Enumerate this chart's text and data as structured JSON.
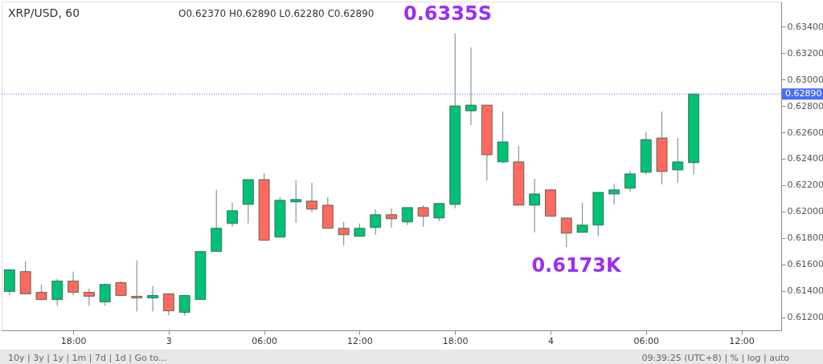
{
  "chart_data": {
    "type": "candlestick",
    "title": "XRP/USD, 60",
    "subtitle": "O0.62370 H0.62890 L0.62280 C0.62890",
    "categories": [
      null,
      null,
      null,
      null,
      "18:00",
      null,
      null,
      null,
      null,
      null,
      "3",
      null,
      null,
      null,
      null,
      null,
      "06:00",
      null,
      null,
      null,
      null,
      null,
      "12:00",
      null,
      null,
      null,
      null,
      null,
      "18:00",
      null,
      null,
      null,
      null,
      null,
      "4",
      null,
      null,
      null,
      null,
      null,
      "06:00",
      null,
      null,
      null,
      null,
      null,
      "12:00",
      null,
      null
    ],
    "ohlc": [
      [
        0.61394,
        0.61564,
        0.61364,
        0.61558
      ],
      [
        0.61545,
        0.61624,
        0.61376,
        0.61376
      ],
      [
        0.61388,
        0.61448,
        0.61327,
        0.61333
      ],
      [
        0.61333,
        0.61491,
        0.61285,
        0.61473
      ],
      [
        0.61473,
        0.61545,
        0.61364,
        0.61388
      ],
      [
        0.61388,
        0.61418,
        0.61285,
        0.61358
      ],
      [
        0.61315,
        0.61455,
        0.61285,
        0.61448
      ],
      [
        0.61461,
        0.61473,
        0.61364,
        0.61364
      ],
      [
        0.61358,
        0.6163,
        0.61242,
        0.61345
      ],
      [
        0.61345,
        0.61436,
        0.61242,
        0.61364
      ],
      [
        0.61376,
        0.61376,
        0.61212,
        0.61248
      ],
      [
        0.61236,
        0.61364,
        0.61212,
        0.61364
      ],
      [
        0.61333,
        0.61697,
        0.61333,
        0.61697
      ],
      [
        0.61697,
        0.62164,
        0.61697,
        0.61873
      ],
      [
        0.61909,
        0.62067,
        0.61885,
        0.62006
      ],
      [
        0.62054,
        0.62242,
        0.61909,
        0.62242
      ],
      [
        0.62242,
        0.62291,
        0.61782,
        0.61782
      ],
      [
        0.61806,
        0.62109,
        0.61806,
        0.62085
      ],
      [
        0.62073,
        0.62236,
        0.61915,
        0.62091
      ],
      [
        0.62079,
        0.62218,
        0.61994,
        0.62018
      ],
      [
        0.62048,
        0.62109,
        0.61873,
        0.61873
      ],
      [
        0.61873,
        0.61921,
        0.6174,
        0.61824
      ],
      [
        0.61812,
        0.61909,
        0.61812,
        0.61873
      ],
      [
        0.61879,
        0.62018,
        0.61824,
        0.61976
      ],
      [
        0.61976,
        0.62024,
        0.61879,
        0.61945
      ],
      [
        0.61921,
        0.6203,
        0.61897,
        0.6203
      ],
      [
        0.6203,
        0.62048,
        0.61885,
        0.61964
      ],
      [
        0.61951,
        0.62061,
        0.61927,
        0.62061
      ],
      [
        0.62054,
        0.6335,
        0.62024,
        0.628
      ],
      [
        0.62763,
        0.63242,
        0.62654,
        0.62806
      ],
      [
        0.62806,
        0.62806,
        0.62236,
        0.6243
      ],
      [
        0.62376,
        0.62757,
        0.62364,
        0.62527
      ],
      [
        0.62376,
        0.62497,
        0.62048,
        0.62048
      ],
      [
        0.62048,
        0.62248,
        0.61842,
        0.62133
      ],
      [
        0.62164,
        0.62164,
        0.61964,
        0.61964
      ],
      [
        0.61951,
        0.61951,
        0.6173,
        0.61836
      ],
      [
        0.61842,
        0.62067,
        0.61842,
        0.61897
      ],
      [
        0.61897,
        0.62145,
        0.61812,
        0.62145
      ],
      [
        0.62133,
        0.62206,
        0.62054,
        0.62164
      ],
      [
        0.62176,
        0.62309,
        0.62151,
        0.62285
      ],
      [
        0.62297,
        0.626,
        0.62279,
        0.62545
      ],
      [
        0.62557,
        0.62757,
        0.62206,
        0.62303
      ],
      [
        0.62315,
        0.62557,
        0.62218,
        0.62376
      ],
      [
        0.6237,
        0.6289,
        0.6228,
        0.6289
      ],
      null,
      null,
      null,
      null,
      null
    ],
    "colors": [
      "#00c176",
      "#ff6960",
      "#ff6960",
      "#00c176",
      "#ff6960",
      "#ff6960",
      "#00c176",
      "#ff6960",
      "#ff6960",
      "#00c176",
      "#ff6960",
      "#00c176",
      "#00c176",
      "#00c176",
      "#00c176",
      "#00c176",
      "#ff6960",
      "#00c176",
      "#00c176",
      "#ff6960",
      "#ff6960",
      "#ff6960",
      "#00c176",
      "#00c176",
      "#ff6960",
      "#00c176",
      "#ff6960",
      "#00c176",
      "#00c176",
      "#00c176",
      "#ff6960",
      "#00c176",
      "#ff6960",
      "#00c176",
      "#ff6960",
      "#ff6960",
      "#00c176",
      "#00c176",
      "#00c176",
      "#00c176",
      "#00c176",
      "#ff6960",
      "#00c176",
      "#00c176",
      null,
      null,
      null,
      null,
      null
    ],
    "ylim": [
      0.611,
      0.6359
    ],
    "yticks": [
      {
        "value": 0.612,
        "label": "0.61200"
      },
      {
        "value": 0.614,
        "label": "0.61400"
      },
      {
        "value": 0.616,
        "label": "0.61600"
      },
      {
        "value": 0.618,
        "label": "0.61800"
      },
      {
        "value": 0.62,
        "label": "0.62000"
      },
      {
        "value": 0.622,
        "label": "0.62200"
      },
      {
        "value": 0.624,
        "label": "0.62400"
      },
      {
        "value": 0.626,
        "label": "0.62600"
      },
      {
        "value": 0.628,
        "label": "0.62800"
      },
      {
        "value": 0.63,
        "label": "0.63000"
      },
      {
        "value": 0.632,
        "label": "0.63200"
      },
      {
        "value": 0.634,
        "label": "0.63400"
      }
    ],
    "ref_lines": [
      {
        "axis": "y",
        "value": 0.6289,
        "label": "0.62890",
        "color": "#4a6cf7",
        "line_style": "dotted"
      }
    ],
    "annotations": [
      "0.6335S",
      "0.6173K",
      "10y | 3y | 1y | 1m | 7d | 1d | Go to...",
      "09:39:25 (UTC+8) | % | log | auto"
    ],
    "grid": false
  }
}
